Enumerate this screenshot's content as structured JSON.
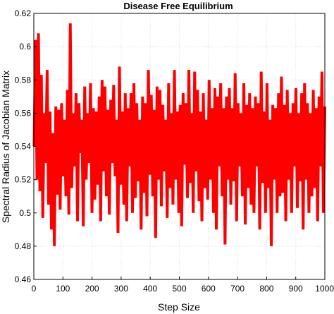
{
  "chart_data": {
    "type": "line",
    "title": "Disease Free Equilibrium",
    "xlabel": "Step Size",
    "ylabel": "Spectral Radius of Jacobian Matrix",
    "xlim": [
      0,
      1000
    ],
    "ylim": [
      0.46,
      0.62
    ],
    "xticks": [
      "0",
      "100",
      "200",
      "300",
      "400",
      "500",
      "600",
      "700",
      "800",
      "900",
      "1000"
    ],
    "yticks": [
      "0.46",
      "0.48",
      "0.5",
      "0.52",
      "0.54",
      "0.56",
      "0.58",
      "0.6",
      "0.62"
    ],
    "grid": true,
    "color": "#ff0000",
    "series": [
      {
        "x_start": 1,
        "x_end": 1000,
        "values": [
          0.54,
          0.604,
          0.52,
          0.608,
          0.513,
          0.583,
          0.497,
          0.56,
          0.53,
          0.586,
          0.505,
          0.561,
          0.49,
          0.548,
          0.48,
          0.564,
          0.511,
          0.562,
          0.502,
          0.566,
          0.522,
          0.556,
          0.51,
          0.574,
          0.499,
          0.614,
          0.515,
          0.56,
          0.528,
          0.572,
          0.495,
          0.566,
          0.536,
          0.556,
          0.492,
          0.576,
          0.52,
          0.56,
          0.53,
          0.578,
          0.5,
          0.563,
          0.508,
          0.561,
          0.517,
          0.57,
          0.495,
          0.58,
          0.525,
          0.576,
          0.51,
          0.562,
          0.499,
          0.568,
          0.53,
          0.577,
          0.522,
          0.556,
          0.488,
          0.588,
          0.517,
          0.561,
          0.505,
          0.572,
          0.495,
          0.563,
          0.528,
          0.572,
          0.5,
          0.578,
          0.509,
          0.566,
          0.519,
          0.556,
          0.49,
          0.57,
          0.512,
          0.566,
          0.498,
          0.586,
          0.523,
          0.571,
          0.51,
          0.562,
          0.485,
          0.576,
          0.52,
          0.574,
          0.504,
          0.565,
          0.525,
          0.556,
          0.497,
          0.578,
          0.515,
          0.56,
          0.505,
          0.586,
          0.52,
          0.561,
          0.5,
          0.565,
          0.492,
          0.572,
          0.529,
          0.566,
          0.509,
          0.586,
          0.518,
          0.56,
          0.5,
          0.585,
          0.525,
          0.574,
          0.507,
          0.561,
          0.495,
          0.572,
          0.515,
          0.556,
          0.508,
          0.58,
          0.52,
          0.563,
          0.5,
          0.575,
          0.49,
          0.57,
          0.528,
          0.578,
          0.51,
          0.563,
          0.481,
          0.57,
          0.52,
          0.575,
          0.505,
          0.563,
          0.519,
          0.584,
          0.495,
          0.566,
          0.528,
          0.56,
          0.51,
          0.578,
          0.493,
          0.565,
          0.515,
          0.572,
          0.505,
          0.563,
          0.5,
          0.57,
          0.528,
          0.566,
          0.49,
          0.585,
          0.518,
          0.561,
          0.5,
          0.578,
          0.515,
          0.556,
          0.48,
          0.565,
          0.52,
          0.563,
          0.5,
          0.572,
          0.51,
          0.582,
          0.512,
          0.565,
          0.495,
          0.574,
          0.52,
          0.56,
          0.5,
          0.566,
          0.528,
          0.575,
          0.503,
          0.56,
          0.519,
          0.572,
          0.49,
          0.578,
          0.52,
          0.566,
          0.5,
          0.56,
          0.51,
          0.574,
          0.515,
          0.563,
          0.495,
          0.57,
          0.528,
          0.585,
          0.5,
          0.564
        ]
      }
    ]
  }
}
